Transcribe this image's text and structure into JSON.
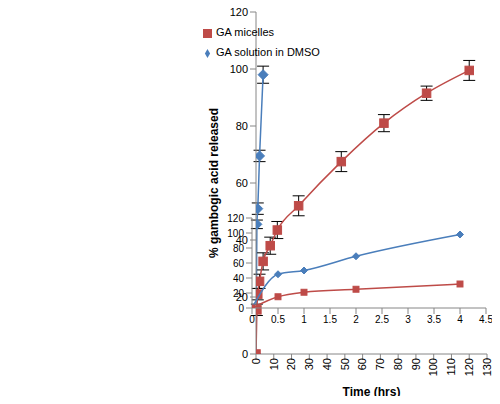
{
  "chart_data": [
    {
      "type": "line",
      "xlabel": "Time (hrs)",
      "ylabel": "% gambogic acid released",
      "xlim": [
        0,
        130
      ],
      "xticks": [
        0,
        10,
        20,
        30,
        40,
        50,
        60,
        70,
        80,
        90,
        100,
        110,
        120,
        130
      ],
      "ylim": [
        0,
        120
      ],
      "yticks": [
        0,
        20,
        40,
        60,
        80,
        100,
        120
      ],
      "legend": "top",
      "series": [
        {
          "name": "GA solution in DMSO",
          "color": "#4a7ebb",
          "marker": "diamond",
          "line_style": "smooth",
          "x": [
            0,
            0.5,
            1,
            2,
            4
          ],
          "values": [
            0,
            45.5,
            51,
            69.5,
            98
          ],
          "errors": [
            0,
            1.5,
            2,
            2,
            3
          ]
        },
        {
          "name": "GA micelles",
          "color": "#be4b48",
          "marker": "square",
          "line_style": "smooth",
          "x": [
            0,
            0.5,
            1,
            2,
            4,
            8,
            12,
            24,
            48,
            72,
            96,
            120
          ],
          "values": [
            0,
            15.5,
            21,
            25.5,
            32.5,
            38,
            43.5,
            52,
            67.5,
            81,
            91.5,
            99.5
          ],
          "errors": [
            0,
            2,
            2,
            2.5,
            3,
            3,
            3,
            3.5,
            3.5,
            3,
            2.5,
            3.5
          ]
        }
      ]
    },
    {
      "type": "line",
      "xlim": [
        0,
        4.5
      ],
      "xticks": [
        0,
        0.5,
        1,
        1.5,
        2,
        2.5,
        3,
        3.5,
        4,
        4.5
      ],
      "ylim": [
        0,
        120
      ],
      "yticks": [
        0,
        20,
        40,
        60,
        80,
        100,
        120
      ],
      "series": [
        {
          "name": "GA solution in DMSO",
          "color": "#4a7ebb",
          "marker": "diamond",
          "line_style": "smooth",
          "x": [
            0,
            0.5,
            1,
            2,
            4
          ],
          "values": [
            0,
            45,
            50,
            69,
            98
          ]
        },
        {
          "name": "GA micelles",
          "color": "#be4b48",
          "marker": "square",
          "line_style": "smooth",
          "x": [
            0,
            0.5,
            1,
            2,
            4
          ],
          "values": [
            0,
            15,
            21,
            25,
            32
          ]
        }
      ]
    }
  ]
}
